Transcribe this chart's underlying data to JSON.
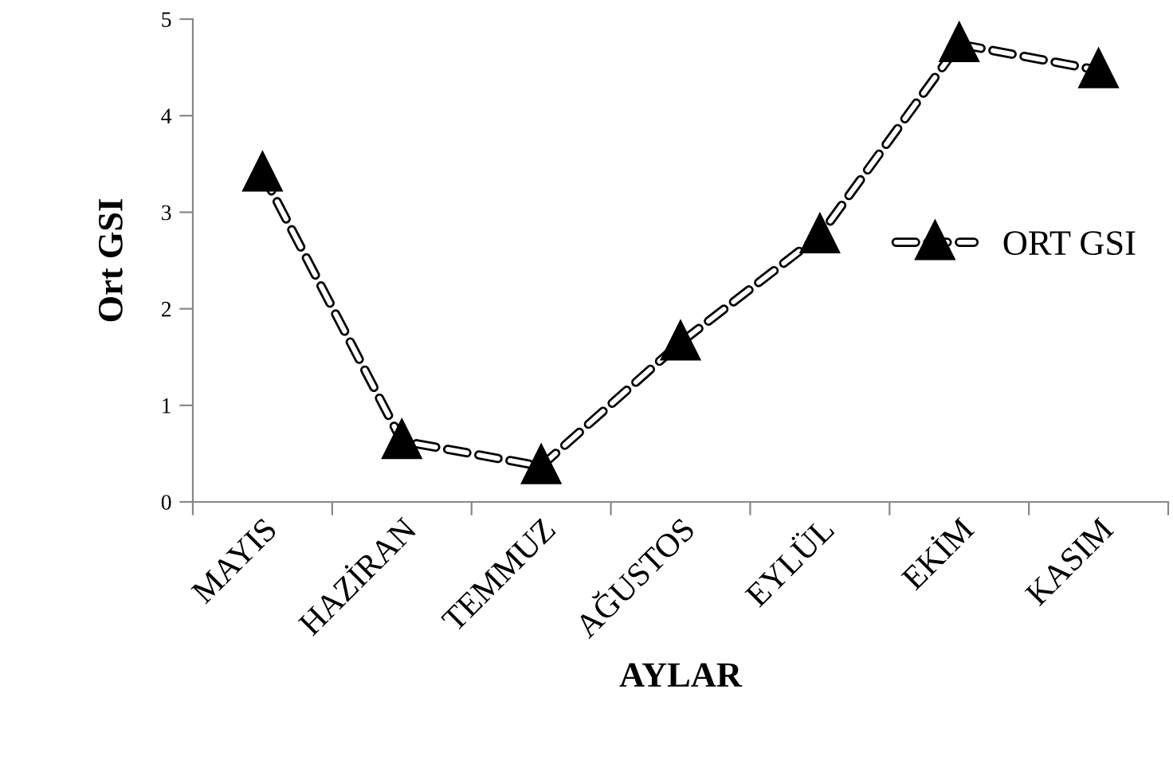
{
  "chart_data": {
    "type": "line",
    "xlabel": "AYLAR",
    "ylabel": "Ort GSI",
    "categories": [
      "MAYIS",
      "HAZİRAN",
      "TEMMUZ",
      "AĞUSTOS",
      "EYLÜL",
      "EKİM",
      "KASIM"
    ],
    "series": [
      {
        "name": "ORT GSI",
        "color": "#000000",
        "values": [
          3.4,
          0.63,
          0.37,
          1.65,
          2.76,
          4.74,
          4.47
        ]
      }
    ],
    "ylim": [
      0,
      5
    ],
    "yticks": [
      0,
      1,
      2,
      3,
      4,
      5
    ],
    "grid": false,
    "legend": "right",
    "marker": "triangle",
    "line_style": "dashed"
  }
}
